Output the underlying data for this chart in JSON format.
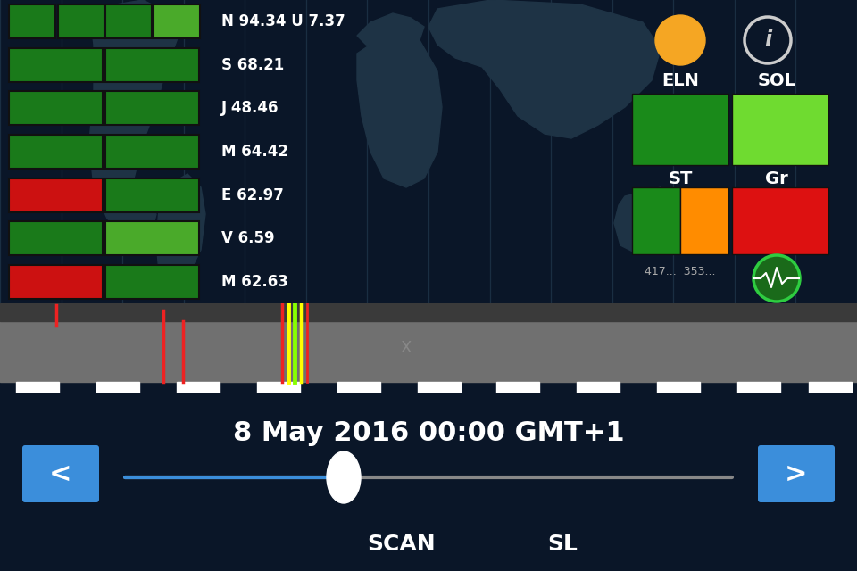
{
  "bg_color": "#0a1628",
  "bg_top": "#0d1e2e",
  "rows": [
    {
      "label": "N 94.34 U 7.37",
      "boxes": [
        {
          "color": "#1a7a1a"
        },
        {
          "color": "#1a7a1a"
        },
        {
          "color": "#1a7a1a"
        },
        {
          "color": "#4aaa2a"
        }
      ]
    },
    {
      "label": "S 68.21",
      "boxes": [
        {
          "color": "#1a7a1a"
        },
        {
          "color": "#1a7a1a"
        }
      ]
    },
    {
      "label": "J 48.46",
      "boxes": [
        {
          "color": "#1a7a1a"
        },
        {
          "color": "#1a7a1a"
        }
      ]
    },
    {
      "label": "M 64.42",
      "boxes": [
        {
          "color": "#1a7a1a"
        },
        {
          "color": "#1a7a1a"
        }
      ]
    },
    {
      "label": "E 62.97",
      "boxes": [
        {
          "color": "#cc1111"
        },
        {
          "color": "#1a7a1a"
        }
      ]
    },
    {
      "label": "V 6.59",
      "boxes": [
        {
          "color": "#1a7a1a"
        },
        {
          "color": "#4aaa2a"
        }
      ]
    },
    {
      "label": "M 62.63",
      "boxes": [
        {
          "color": "#cc1111"
        },
        {
          "color": "#1a7a1a"
        }
      ]
    }
  ],
  "eln_color": "#1a8a1a",
  "sol_color": "#6fdb30",
  "st_green_color": "#1a8a1a",
  "st_orange_color": "#ff8c00",
  "gr_red_color": "#dd1111",
  "sun_color": "#f5a623",
  "date_text": "8 May 2016 00:00 GMT+1",
  "slider_blue_color": "#3b8edb",
  "slider_gray_color": "#888888",
  "button_color": "#3b8edb",
  "gray_band_color": "#707070",
  "dark_strip_color": "#555555",
  "grid_line_color": "#1a2e42"
}
